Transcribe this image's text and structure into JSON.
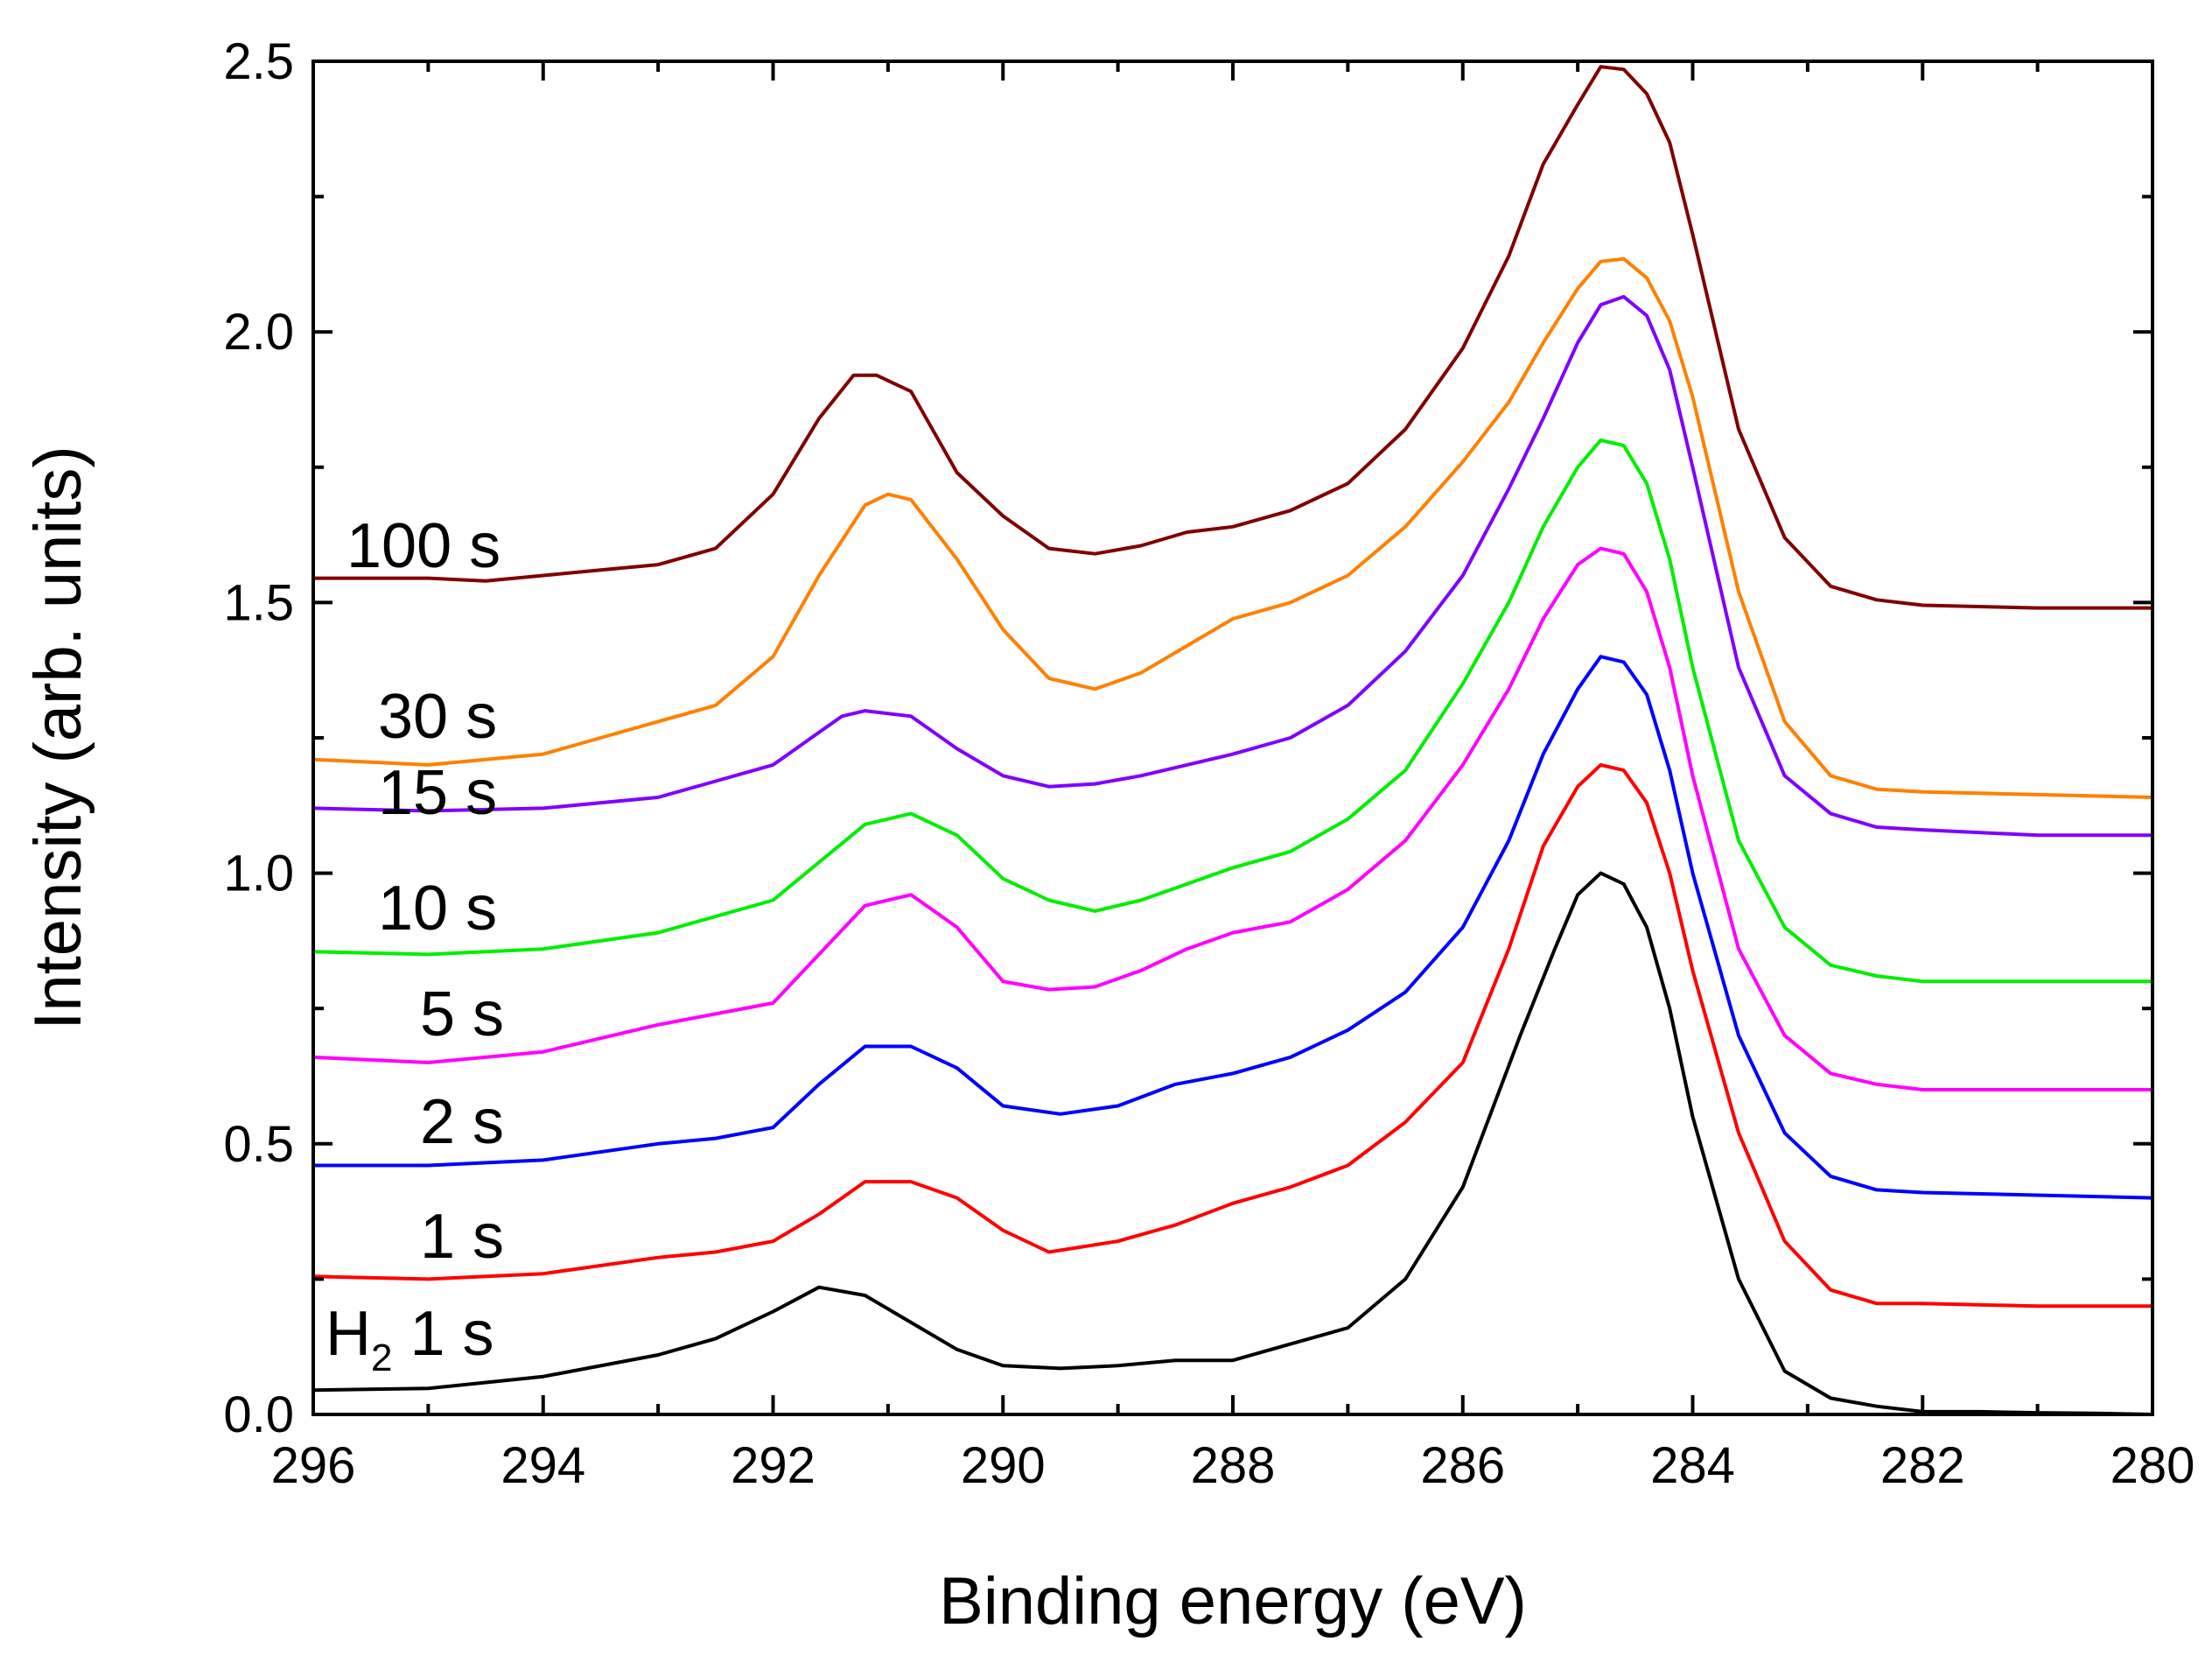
{
  "chart_data": {
    "type": "line",
    "title": "",
    "xlabel": "Binding energy (eV)",
    "ylabel": "Intensity (arb. units)",
    "xlim": [
      296,
      280
    ],
    "ylim": [
      0.0,
      2.5
    ],
    "x_reversed": true,
    "grid": false,
    "x_ticks": [
      296,
      294,
      292,
      290,
      288,
      286,
      284,
      282,
      280
    ],
    "x_tick_labels": [
      "296",
      "294",
      "292",
      "290",
      "288",
      "286",
      "284",
      "282",
      "280"
    ],
    "y_ticks": [
      0.0,
      0.5,
      1.0,
      1.5,
      2.0,
      2.5
    ],
    "y_tick_labels": [
      "0.0",
      "0.5",
      "1.0",
      "1.5",
      "2.0",
      "2.5"
    ],
    "series": [
      {
        "name": "H2 1 s",
        "label_main": "H",
        "label_sub": "2",
        "label_rest": " 1 s",
        "color": "#000000",
        "x": [
          296,
          295,
          294,
          293,
          292.5,
          292,
          291.6,
          291.2,
          290.8,
          290.4,
          290,
          289.5,
          289,
          288.5,
          288,
          287.5,
          287,
          286.5,
          286,
          285.5,
          285.2,
          285,
          284.8,
          284.6,
          284.4,
          284.2,
          284,
          283.6,
          283.2,
          282.8,
          282.4,
          282,
          281.5,
          281,
          280.5,
          280
        ],
        "values": [
          0.045,
          0.048,
          0.07,
          0.11,
          0.14,
          0.19,
          0.235,
          0.22,
          0.17,
          0.12,
          0.09,
          0.085,
          0.09,
          0.1,
          0.1,
          0.13,
          0.16,
          0.25,
          0.42,
          0.7,
          0.86,
          0.96,
          1.0,
          0.98,
          0.9,
          0.75,
          0.55,
          0.25,
          0.08,
          0.03,
          0.015,
          0.005,
          0.005,
          0.003,
          0.002,
          0.0
        ]
      },
      {
        "name": "1 s",
        "color": "#ff0000",
        "x": [
          296,
          295,
          294,
          293,
          292.5,
          292,
          291.6,
          291.2,
          290.8,
          290.4,
          290,
          289.6,
          289,
          288.5,
          288,
          287.5,
          287,
          286.5,
          286,
          285.6,
          285.3,
          285,
          284.8,
          284.6,
          284.4,
          284.2,
          284,
          283.6,
          283.2,
          282.8,
          282.4,
          282,
          281,
          280
        ],
        "values": [
          0.255,
          0.25,
          0.26,
          0.29,
          0.3,
          0.32,
          0.37,
          0.43,
          0.43,
          0.4,
          0.34,
          0.3,
          0.32,
          0.35,
          0.39,
          0.42,
          0.46,
          0.54,
          0.65,
          0.86,
          1.05,
          1.16,
          1.2,
          1.19,
          1.13,
          1.0,
          0.82,
          0.52,
          0.32,
          0.23,
          0.205,
          0.205,
          0.2,
          0.2
        ]
      },
      {
        "name": "2 s",
        "color": "#0000ff",
        "x": [
          296,
          295,
          294,
          293,
          292.5,
          292,
          291.6,
          291.2,
          290.8,
          290.4,
          290,
          289.5,
          289,
          288.5,
          288,
          287.5,
          287,
          286.5,
          286,
          285.6,
          285.3,
          285,
          284.8,
          284.6,
          284.4,
          284.2,
          284,
          283.6,
          283.2,
          282.8,
          282.4,
          282,
          281,
          280
        ],
        "values": [
          0.46,
          0.46,
          0.47,
          0.5,
          0.51,
          0.53,
          0.61,
          0.68,
          0.68,
          0.64,
          0.57,
          0.555,
          0.57,
          0.61,
          0.63,
          0.66,
          0.71,
          0.78,
          0.9,
          1.06,
          1.22,
          1.34,
          1.4,
          1.39,
          1.33,
          1.19,
          1.0,
          0.7,
          0.52,
          0.44,
          0.415,
          0.41,
          0.405,
          0.4
        ]
      },
      {
        "name": "5 s",
        "color": "#ff00ff",
        "x": [
          296,
          295,
          294,
          293,
          292.5,
          292,
          291.6,
          291.2,
          290.8,
          290.4,
          290,
          289.6,
          289.2,
          288.8,
          288.4,
          288,
          287.5,
          287,
          286.5,
          286,
          285.6,
          285.3,
          285,
          284.8,
          284.6,
          284.4,
          284.2,
          284,
          283.6,
          283.2,
          282.8,
          282.4,
          282,
          281,
          280
        ],
        "values": [
          0.66,
          0.65,
          0.67,
          0.72,
          0.74,
          0.76,
          0.85,
          0.94,
          0.96,
          0.9,
          0.8,
          0.785,
          0.79,
          0.82,
          0.86,
          0.89,
          0.91,
          0.97,
          1.06,
          1.2,
          1.34,
          1.47,
          1.57,
          1.6,
          1.59,
          1.52,
          1.38,
          1.18,
          0.86,
          0.7,
          0.63,
          0.61,
          0.6,
          0.6,
          0.6
        ]
      },
      {
        "name": "10 s",
        "color": "#00ee00",
        "x": [
          296,
          295,
          294,
          293,
          292.5,
          292,
          291.6,
          291.2,
          290.8,
          290.4,
          290,
          289.6,
          289.2,
          288.8,
          288.4,
          288,
          287.5,
          287,
          286.5,
          286,
          285.6,
          285.3,
          285,
          284.8,
          284.6,
          284.4,
          284.2,
          284,
          283.6,
          283.2,
          282.8,
          282.4,
          282,
          281,
          280
        ],
        "values": [
          0.855,
          0.85,
          0.86,
          0.89,
          0.92,
          0.95,
          1.02,
          1.09,
          1.11,
          1.07,
          0.99,
          0.95,
          0.93,
          0.95,
          0.98,
          1.01,
          1.04,
          1.1,
          1.19,
          1.35,
          1.5,
          1.64,
          1.75,
          1.8,
          1.79,
          1.72,
          1.58,
          1.38,
          1.06,
          0.9,
          0.83,
          0.81,
          0.8,
          0.8,
          0.8
        ]
      },
      {
        "name": "15 s",
        "color": "#8000ff",
        "x": [
          296,
          295,
          294,
          293,
          292.5,
          292,
          291.6,
          291.4,
          291.2,
          290.8,
          290.4,
          290,
          289.6,
          289.2,
          288.8,
          288.4,
          288,
          287.5,
          287,
          286.5,
          286,
          285.6,
          285.3,
          285,
          284.8,
          284.6,
          284.4,
          284.2,
          284,
          283.6,
          283.2,
          282.8,
          282.4,
          282,
          281,
          280
        ],
        "values": [
          1.12,
          1.115,
          1.12,
          1.14,
          1.17,
          1.2,
          1.26,
          1.29,
          1.3,
          1.29,
          1.23,
          1.18,
          1.16,
          1.165,
          1.18,
          1.2,
          1.22,
          1.25,
          1.31,
          1.41,
          1.55,
          1.71,
          1.84,
          1.98,
          2.05,
          2.065,
          2.03,
          1.93,
          1.75,
          1.38,
          1.18,
          1.11,
          1.085,
          1.08,
          1.07,
          1.07
        ]
      },
      {
        "name": "30 s",
        "color": "#ff8000",
        "x": [
          296,
          295,
          294,
          293.5,
          293,
          292.5,
          292,
          291.6,
          291.2,
          291,
          290.8,
          290.4,
          290,
          289.6,
          289.2,
          288.8,
          288.4,
          288,
          287.5,
          287,
          286.5,
          286,
          285.6,
          285.3,
          285,
          284.8,
          284.6,
          284.4,
          284.2,
          284,
          283.6,
          283.2,
          282.8,
          282.4,
          282,
          281,
          280
        ],
        "values": [
          1.21,
          1.2,
          1.22,
          1.25,
          1.28,
          1.31,
          1.4,
          1.55,
          1.68,
          1.7,
          1.69,
          1.58,
          1.45,
          1.36,
          1.34,
          1.37,
          1.42,
          1.47,
          1.5,
          1.55,
          1.64,
          1.76,
          1.87,
          1.98,
          2.08,
          2.13,
          2.135,
          2.1,
          2.02,
          1.88,
          1.52,
          1.28,
          1.18,
          1.155,
          1.15,
          1.145,
          1.14
        ]
      },
      {
        "name": "100 s",
        "color": "#800000",
        "x": [
          296,
          295,
          294.5,
          294,
          293.5,
          293,
          292.5,
          292,
          291.6,
          291.3,
          291.1,
          290.8,
          290.4,
          290,
          289.6,
          289.2,
          288.8,
          288.4,
          288,
          287.5,
          287,
          286.5,
          286,
          285.6,
          285.3,
          285,
          284.8,
          284.6,
          284.4,
          284.2,
          284,
          283.6,
          283.2,
          282.8,
          282.4,
          282,
          281,
          280
        ],
        "values": [
          1.545,
          1.545,
          1.54,
          1.55,
          1.56,
          1.57,
          1.6,
          1.7,
          1.84,
          1.92,
          1.92,
          1.89,
          1.74,
          1.66,
          1.6,
          1.59,
          1.605,
          1.63,
          1.64,
          1.67,
          1.72,
          1.82,
          1.97,
          2.14,
          2.31,
          2.42,
          2.49,
          2.485,
          2.44,
          2.35,
          2.18,
          1.82,
          1.62,
          1.53,
          1.505,
          1.495,
          1.49,
          1.49
        ]
      }
    ],
    "series_labels": [
      {
        "text": "100 s",
        "color": "#000000"
      },
      {
        "text": "30 s",
        "color": "#000000"
      },
      {
        "text": "15 s",
        "color": "#000000"
      },
      {
        "text": "10 s",
        "color": "#000000"
      },
      {
        "text": "5 s",
        "color": "#000000"
      },
      {
        "text": "2 s",
        "color": "#000000"
      },
      {
        "text": "1 s",
        "color": "#000000"
      }
    ],
    "h2_label": {
      "main": "H",
      "sub": "2",
      "rest": " 1 s"
    }
  }
}
